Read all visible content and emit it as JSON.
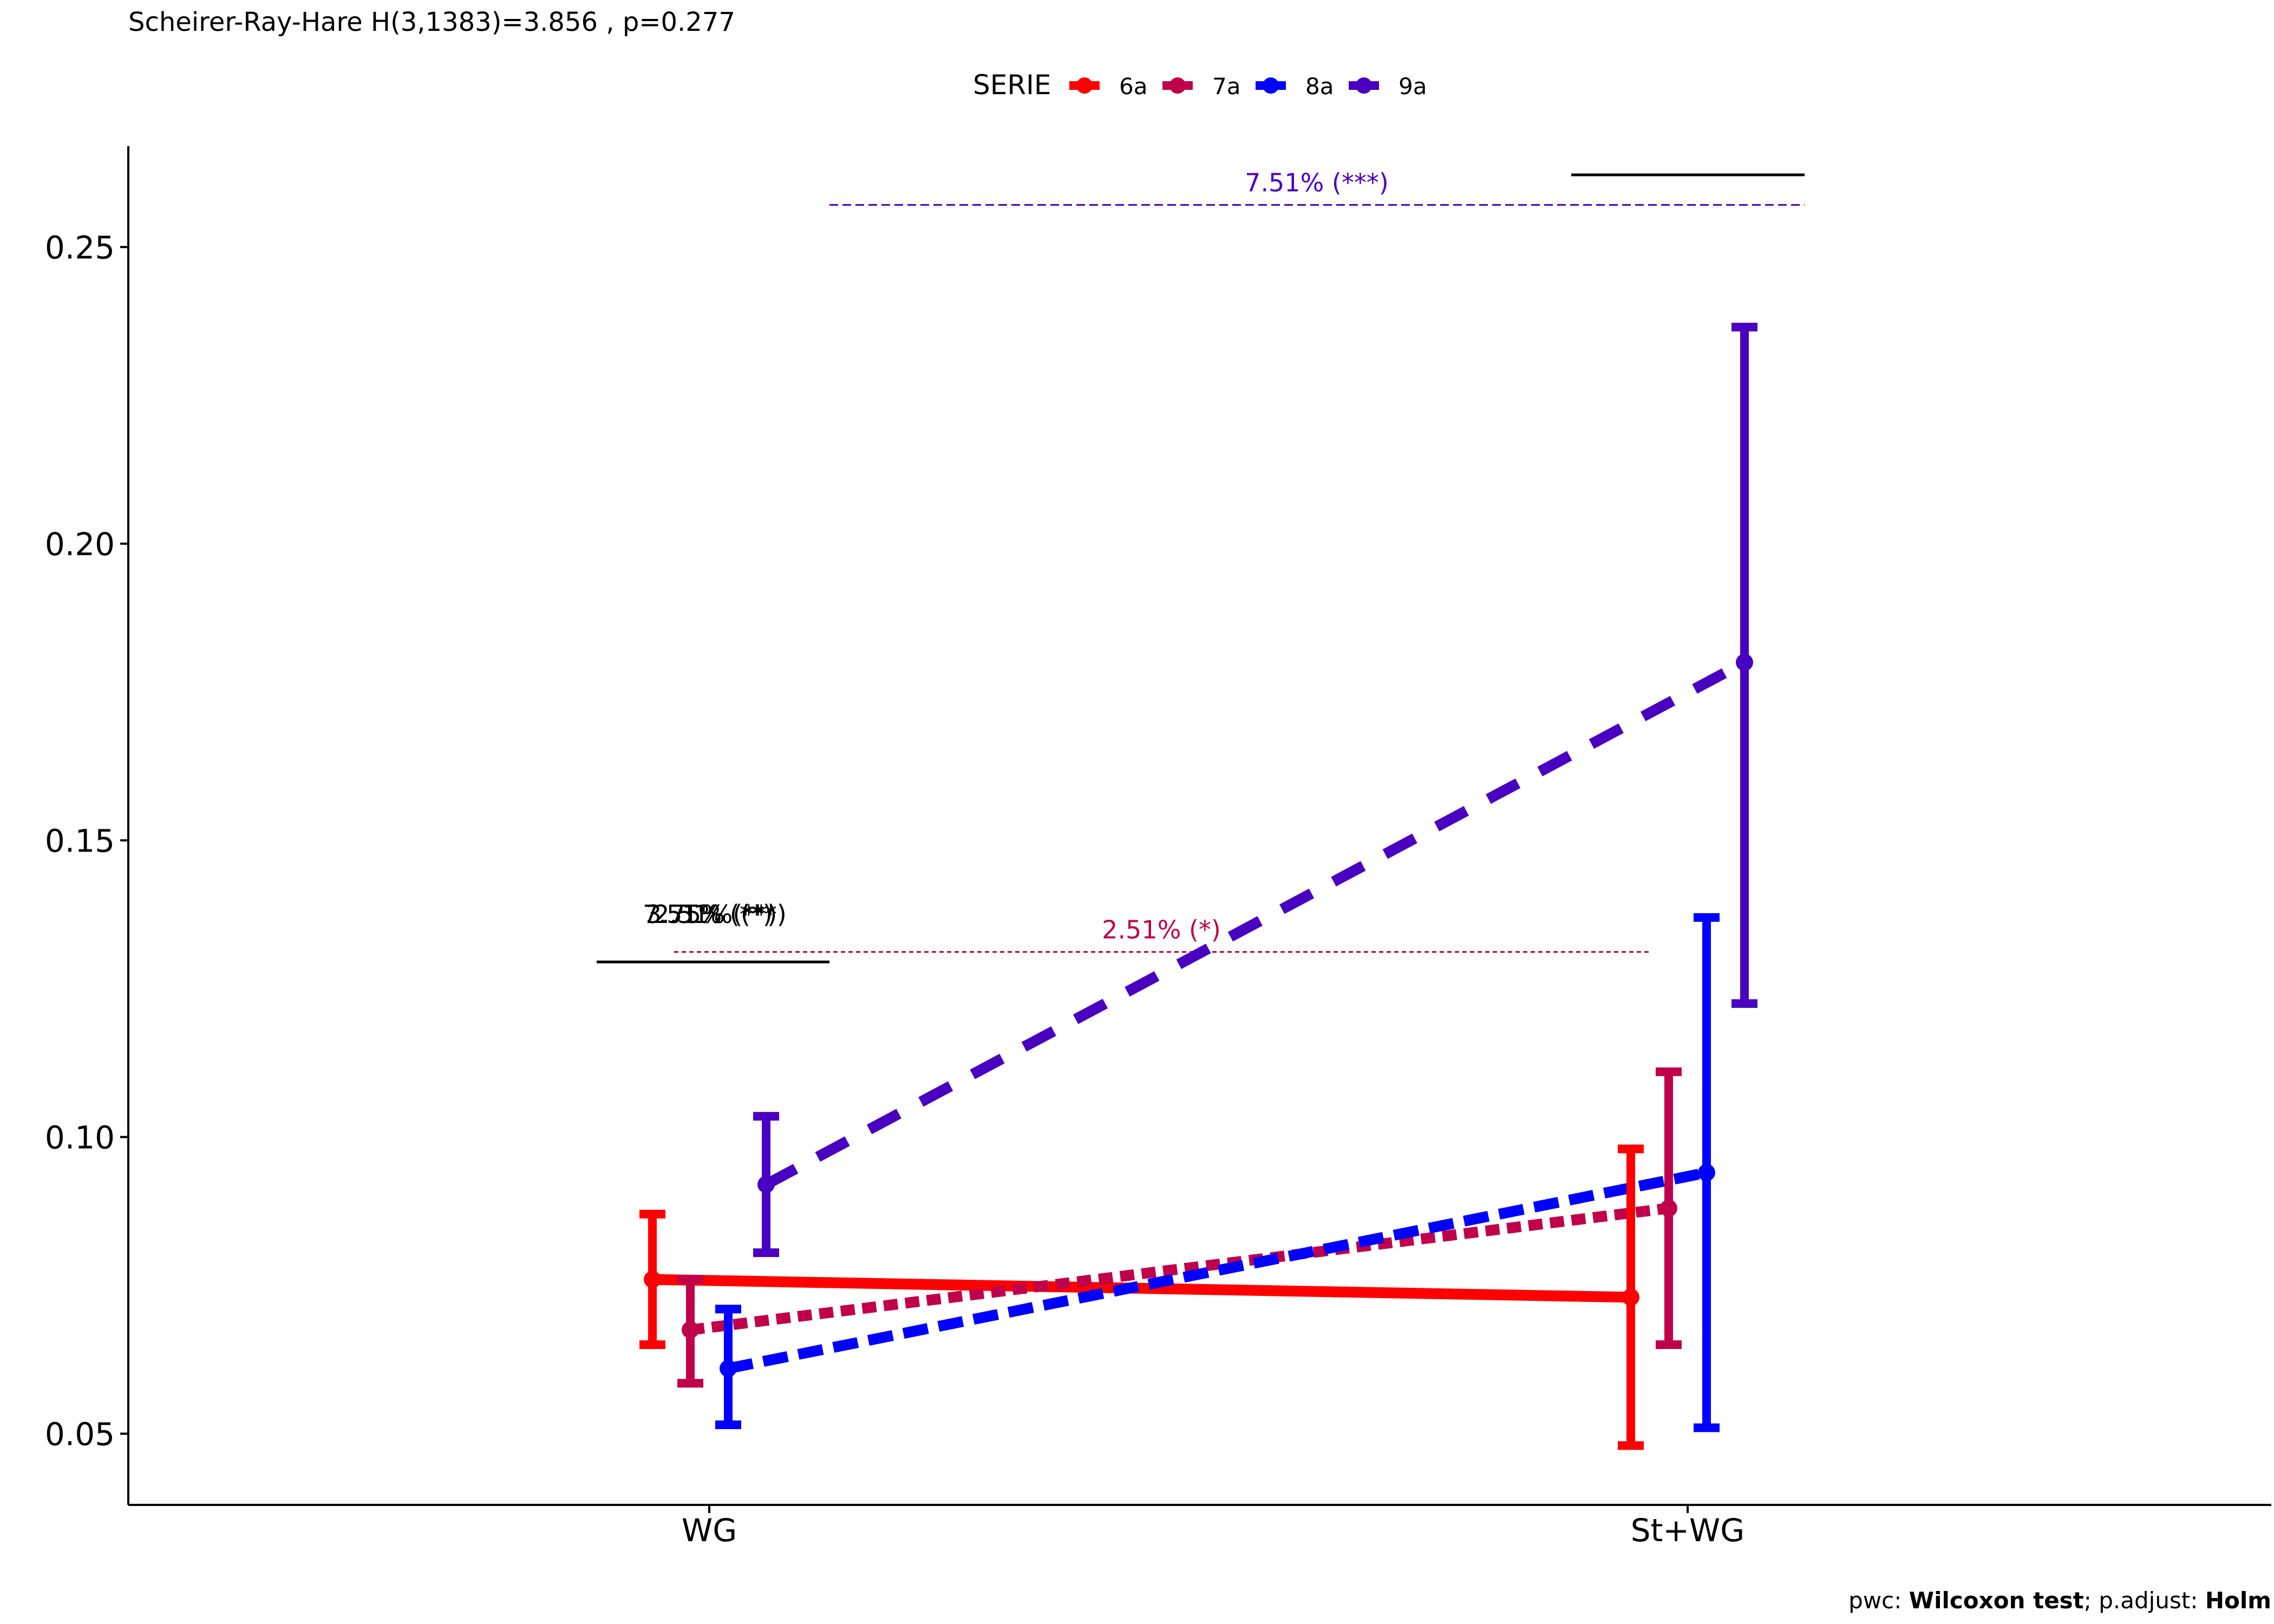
{
  "subtitle": "Scheirer-Ray-Hare H(3,1383)=3.856 , p=0.277",
  "caption": {
    "pwc_prefix": "pwc: ",
    "pwc_test": "Wilcoxon test",
    "mid": "; p.adjust: ",
    "adjust": "Holm"
  },
  "chart_data": {
    "type": "line",
    "title": "",
    "xlabel": "",
    "ylabel": "",
    "categories": [
      "WG",
      "St+WG"
    ],
    "ylim": [
      0.038,
      0.267
    ],
    "yticks": [
      "0.05",
      "0.10",
      "0.15",
      "0.20",
      "0.25"
    ],
    "grid": false,
    "legend": {
      "title": "SERIE",
      "position": "top"
    },
    "series": [
      {
        "name": "6a",
        "color": "#FF0000",
        "dash": "solid",
        "values": [
          0.076,
          0.073
        ],
        "lower": [
          0.065,
          0.048
        ],
        "upper": [
          0.087,
          0.098
        ]
      },
      {
        "name": "7a",
        "color": "#C0004A",
        "dash": "dotted",
        "values": [
          0.0675,
          0.088
        ],
        "lower": [
          0.0585,
          0.065
        ],
        "upper": [
          0.076,
          0.111
        ]
      },
      {
        "name": "8a",
        "color": "#0000FF",
        "dash": "dashed",
        "values": [
          0.061,
          0.094
        ],
        "lower": [
          0.0515,
          0.051
        ],
        "upper": [
          0.071,
          0.137
        ]
      },
      {
        "name": "9a",
        "color": "#4A00C0",
        "dash": "longdash",
        "values": [
          0.092,
          0.18
        ],
        "lower": [
          0.0805,
          0.1225
        ],
        "upper": [
          0.1035,
          0.2365
        ]
      }
    ],
    "annotations": [
      {
        "text": "7.51% (***)",
        "color": "#4A00C0",
        "y": 0.2571
      },
      {
        "text": "2.51% (*)",
        "color": "#C0004A",
        "y": 0.1312
      }
    ],
    "overlapping_labels": [
      "3.75% (**)",
      "2.51% (*)",
      "7.51% (***)"
    ]
  }
}
